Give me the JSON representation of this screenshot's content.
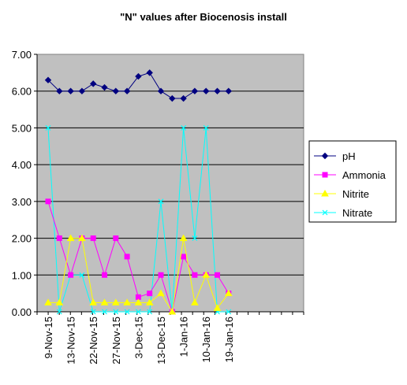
{
  "chart_data": {
    "type": "line",
    "title": "\"N\" values after Biocenosis install",
    "xlabel": "",
    "ylabel": "",
    "ylim": [
      0,
      7
    ],
    "yticks": [
      "0.00",
      "1.00",
      "2.00",
      "3.00",
      "4.00",
      "5.00",
      "6.00",
      "7.00"
    ],
    "x_tick_labels": [
      "9-Nov-15",
      "13-Nov-15",
      "22-Nov-15",
      "27-Nov-15",
      "3-Dec-15",
      "13-Dec-15",
      "1-Jan-16",
      "10-Jan-16",
      "19-Jan-16"
    ],
    "grid": "horizontal major gridlines",
    "plot_background": "#c0c0c0",
    "legend_position": "right",
    "series": [
      {
        "name": "pH",
        "color": "#000080",
        "marker": "diamond",
        "values": [
          6.3,
          6.0,
          6.0,
          6.0,
          6.2,
          6.1,
          6.0,
          6.0,
          6.4,
          6.5,
          6.0,
          5.8,
          5.8,
          6.0,
          6.0,
          6.0,
          6.0
        ]
      },
      {
        "name": "Ammonia",
        "color": "#ff00ff",
        "marker": "square",
        "values": [
          3.0,
          2.0,
          1.0,
          2.0,
          2.0,
          1.0,
          2.0,
          1.5,
          0.4,
          0.5,
          1.0,
          0.0,
          1.5,
          1.0,
          1.0,
          1.0,
          0.5
        ]
      },
      {
        "name": "Nitrite",
        "color": "#ffff00",
        "marker": "triangle",
        "values": [
          0.25,
          0.25,
          2.0,
          2.0,
          0.25,
          0.25,
          0.25,
          0.25,
          0.25,
          0.25,
          0.5,
          0.0,
          2.0,
          0.25,
          1.0,
          0.1,
          0.5
        ]
      },
      {
        "name": "Nitrate",
        "color": "#00ffff",
        "marker": "x",
        "values": [
          5.0,
          0.0,
          1.0,
          1.0,
          0.0,
          0.0,
          0.0,
          0.0,
          0.0,
          0.0,
          3.0,
          0.0,
          5.0,
          2.0,
          5.0,
          0.0,
          0.0
        ]
      }
    ]
  }
}
